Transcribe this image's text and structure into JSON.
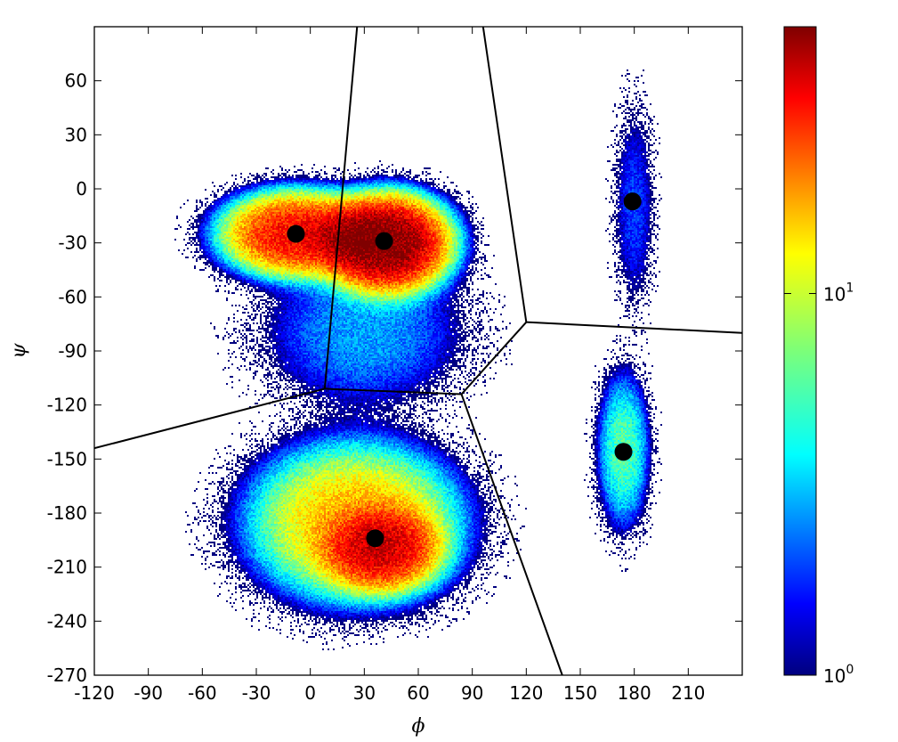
{
  "chart_data": {
    "type": "heatmap",
    "title": "",
    "xlabel": "ϕ",
    "ylabel": "ψ",
    "xlim": [
      -120,
      240
    ],
    "ylim": [
      -270,
      90
    ],
    "xticks": [
      -120,
      -90,
      -60,
      -30,
      0,
      30,
      60,
      90,
      120,
      150,
      180,
      210
    ],
    "xtick_labels": [
      "-120",
      "-90",
      "-60",
      "-30",
      "0",
      "30",
      "60",
      "90",
      "120",
      "150",
      "180",
      "210"
    ],
    "yticks": [
      60,
      30,
      0,
      -30,
      -60,
      -90,
      -120,
      -150,
      -180,
      -210,
      -240,
      -270
    ],
    "ytick_labels": [
      "60",
      "30",
      "0",
      "-30",
      "-60",
      "-90",
      "-120",
      "-150",
      "-180",
      "-210",
      "-240",
      "-270"
    ],
    "grid": false,
    "colormap": "jet",
    "color_scale": "log",
    "colorbar": {
      "range": [
        1,
        50
      ],
      "tick_values": [
        1,
        10
      ],
      "tick_base": "10",
      "tick_exponents": [
        "0",
        "1"
      ]
    },
    "density_clusters": [
      {
        "phi": -8,
        "psi": -25,
        "spread_phi": 28,
        "spread_psi": 16,
        "peak": 30
      },
      {
        "phi": 42,
        "psi": -30,
        "spread_phi": 24,
        "spread_psi": 18,
        "peak": 50
      },
      {
        "phi": 30,
        "psi": -80,
        "spread_phi": 40,
        "spread_psi": 30,
        "peak": 3
      },
      {
        "phi": 25,
        "psi": -185,
        "spread_phi": 40,
        "spread_psi": 30,
        "peak": 15
      },
      {
        "phi": 40,
        "psi": -200,
        "spread_phi": 22,
        "spread_psi": 16,
        "peak": 25
      },
      {
        "phi": 174,
        "psi": -145,
        "spread_phi": 10,
        "spread_psi": 30,
        "peak": 6
      },
      {
        "phi": 180,
        "psi": -10,
        "spread_phi": 8,
        "spread_psi": 40,
        "peak": 2
      }
    ],
    "cluster_centers": [
      {
        "phi": -8,
        "psi": -25
      },
      {
        "phi": 41,
        "psi": -29
      },
      {
        "phi": 179,
        "psi": -7
      },
      {
        "phi": 174,
        "psi": -146
      },
      {
        "phi": 36,
        "psi": -194
      }
    ],
    "voronoi_edges": [
      {
        "from": [
          8,
          -111
        ],
        "to": [
          26,
          90
        ]
      },
      {
        "from": [
          8,
          -111
        ],
        "to": [
          -120,
          -144
        ]
      },
      {
        "from": [
          8,
          -111
        ],
        "to": [
          84,
          -114
        ]
      },
      {
        "from": [
          84,
          -114
        ],
        "to": [
          120,
          -74
        ]
      },
      {
        "from": [
          84,
          -114
        ],
        "to": [
          140,
          -270
        ]
      },
      {
        "from": [
          120,
          -74
        ],
        "to": [
          240,
          -80
        ]
      },
      {
        "from": [
          120,
          -74
        ],
        "to": [
          96,
          90
        ]
      }
    ]
  }
}
